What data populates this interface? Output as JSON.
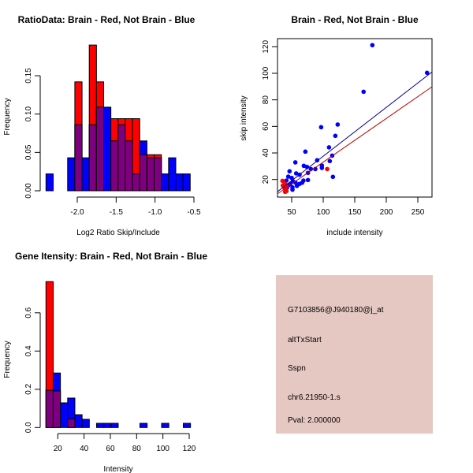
{
  "colors": {
    "brain": "#ff0000",
    "not_brain": "#0000ff",
    "overlap": "#7f007f",
    "info_bg": "#e6c8c2",
    "pval": "#990000",
    "line_brain": "#bb0000",
    "line_not_brain": "#00008b"
  },
  "info": {
    "probe": "G7103856@J940180@j_at",
    "event": "altTxStart",
    "gene": "Sspn",
    "location": "chr6.21950-1.s",
    "pval": "Pval: 2.000000"
  },
  "chart_data": [
    {
      "type": "bar",
      "title": "RatioData: Brain - Red, Not Brain - Blue",
      "xlabel": "Log2 Ratio Skip/Include",
      "ylabel": "Frequency",
      "xticks": [
        "-2.0",
        "-1.5",
        "-1.0",
        "-0.5"
      ],
      "xtick_values": [
        -2.0,
        -1.5,
        -1.0,
        -0.5
      ],
      "yticks": [
        "0.00",
        "0.05",
        "0.10",
        "0.15"
      ],
      "ytick_values": [
        0,
        0.05,
        0.1,
        0.15
      ],
      "bin_start": -2.402,
      "bin_width": 0.0927,
      "series": [
        {
          "name": "Brain",
          "color": "red",
          "values": [
            0,
            0,
            0,
            0,
            0.142,
            0,
            0.19,
            0.142,
            0,
            0.094,
            0.094,
            0.094,
            0.094,
            0.047,
            0.047,
            0.047,
            0,
            0,
            0,
            0
          ]
        },
        {
          "name": "Not Brain",
          "color": "blue",
          "values": [
            0.022,
            0,
            0,
            0.043,
            0.086,
            0.043,
            0.086,
            0.109,
            0.109,
            0.065,
            0.086,
            0.065,
            0.022,
            0.065,
            0.043,
            0.043,
            0.022,
            0.043,
            0.022,
            0.022
          ]
        }
      ]
    },
    {
      "type": "scatter",
      "title": "Brain - Red, Not Brain - Blue",
      "xlabel": "include intensity",
      "ylabel": "skip intensity",
      "xticks": [
        "50",
        "100",
        "150",
        "200",
        "250"
      ],
      "xtick_values": [
        50,
        100,
        150,
        200,
        250
      ],
      "yticks": [
        "20",
        "40",
        "60",
        "80",
        "100",
        "120"
      ],
      "ytick_values": [
        20,
        40,
        60,
        80,
        100,
        120
      ],
      "xlim": [
        27,
        272
      ],
      "ylim": [
        7,
        126
      ],
      "series": [
        {
          "name": "Not Brain",
          "color": "blue",
          "points": [
            [
              177.9,
              121.2
            ],
            [
              264.6,
              100.4
            ],
            [
              164,
              86.1
            ],
            [
              96.7,
              59.4
            ],
            [
              122.9,
              61.4
            ],
            [
              119.2,
              52.9
            ],
            [
              71.7,
              41
            ],
            [
              109.2,
              44.2
            ],
            [
              110.4,
              33.9
            ],
            [
              114.2,
              38
            ],
            [
              115.4,
              22
            ],
            [
              90.4,
              34.5
            ],
            [
              97.9,
              30.5
            ],
            [
              97.9,
              28.7
            ],
            [
              55.8,
              32.9
            ],
            [
              69.2,
              30.3
            ],
            [
              74.2,
              29.5
            ],
            [
              80.4,
              27.9
            ],
            [
              87.5,
              27.9
            ],
            [
              75.8,
              25
            ],
            [
              75.8,
              19.6
            ],
            [
              68.7,
              19.2
            ],
            [
              46.6,
              26.2
            ],
            [
              57.1,
              24.6
            ],
            [
              62.5,
              23.6
            ],
            [
              44.6,
              22.2
            ],
            [
              50,
              21.2
            ],
            [
              41.7,
              19.2
            ],
            [
              52.1,
              18.6
            ],
            [
              56.2,
              17.6
            ],
            [
              62.5,
              16.7
            ],
            [
              66.6,
              17.6
            ],
            [
              58.4,
              15.2
            ],
            [
              51.25,
              14.1
            ],
            [
              51.25,
              12.3
            ],
            [
              45,
              15.7
            ],
            [
              42.5,
              13.7
            ],
            [
              47.9,
              16.7
            ],
            [
              38.75,
              18
            ]
          ]
        },
        {
          "name": "Brain",
          "color": "red",
          "points": [
            [
              35.4,
              19
            ],
            [
              35.9,
              15.5
            ],
            [
              39.6,
              16.7
            ],
            [
              39,
              13.1
            ],
            [
              41.7,
              11.3
            ],
            [
              39.6,
              10.7
            ],
            [
              106.3,
              27.9
            ],
            [
              41.7,
              14.7
            ]
          ]
        }
      ],
      "fits": [
        {
          "name": "Not Brain",
          "color": "blue",
          "slope": 0.368,
          "intercept": 0.72
        },
        {
          "name": "Brain",
          "color": "red",
          "slope": 0.329,
          "intercept": 0.19
        }
      ]
    },
    {
      "type": "bar",
      "title": "Gene Itensity: Brain - Red, Not Brain - Blue",
      "xlabel": "Intensity",
      "ylabel": "Frequency",
      "xticks": [
        "20",
        "40",
        "60",
        "80",
        "100",
        "120"
      ],
      "xtick_values": [
        20,
        40,
        60,
        80,
        100,
        120
      ],
      "yticks": [
        "0.0",
        "0.2",
        "0.4",
        "0.6"
      ],
      "ytick_values": [
        0,
        0.2,
        0.4,
        0.6
      ],
      "bin_start": 11,
      "bin_width": 5.5,
      "series": [
        {
          "name": "Brain",
          "color": "red",
          "values": [
            0.763,
            0.191,
            0,
            0.045,
            0,
            0,
            0,
            0,
            0,
            0,
            0,
            0,
            0,
            0,
            0,
            0,
            0,
            0,
            0,
            0
          ]
        },
        {
          "name": "Not Brain",
          "color": "blue",
          "values": [
            0.194,
            0.285,
            0.129,
            0.154,
            0.067,
            0.043,
            0,
            0.022,
            0.022,
            0.022,
            0,
            0,
            0,
            0.022,
            0,
            0,
            0.022,
            0,
            0,
            0.022
          ]
        }
      ]
    }
  ]
}
